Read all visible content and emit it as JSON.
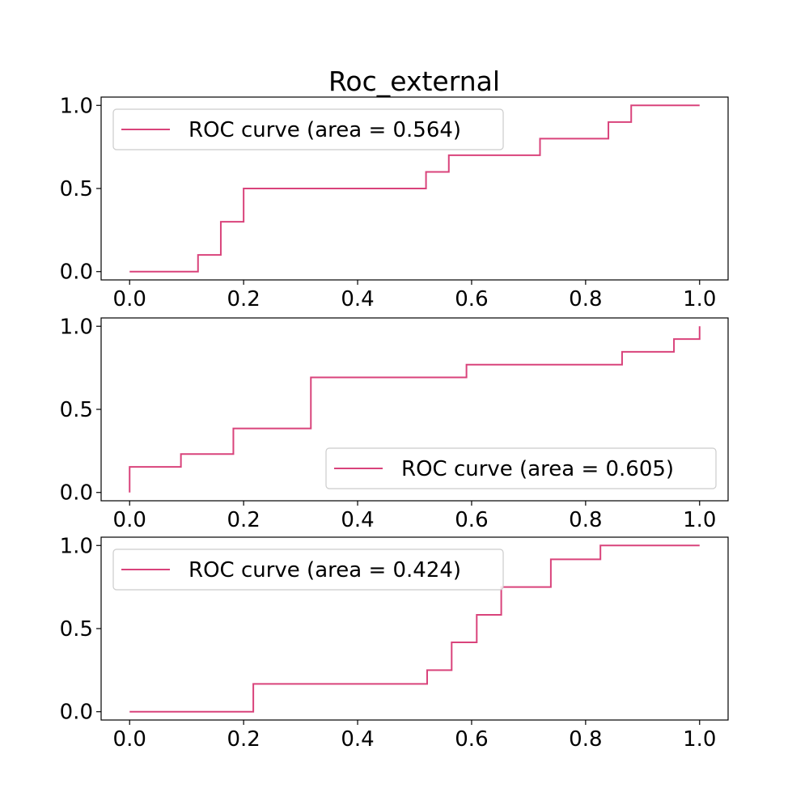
{
  "chart_data": [
    {
      "type": "line",
      "step": true,
      "title": "Roc_external",
      "xlim": [
        -0.05,
        1.05
      ],
      "ylim": [
        -0.05,
        1.05
      ],
      "xticks": [
        "0.0",
        "0.2",
        "0.4",
        "0.6",
        "0.8",
        "1.0"
      ],
      "yticks": [
        "0.0",
        "0.5",
        "1.0"
      ],
      "legend_position": "upper left",
      "series": [
        {
          "name": "ROC curve (area = 0.564)",
          "color": "#d9437b",
          "x": [
            0.0,
            0.12,
            0.12,
            0.16,
            0.16,
            0.2,
            0.2,
            0.52,
            0.52,
            0.56,
            0.56,
            0.72,
            0.72,
            0.84,
            0.84,
            0.88,
            0.88,
            1.0
          ],
          "y": [
            0.0,
            0.0,
            0.1,
            0.1,
            0.3,
            0.3,
            0.5,
            0.5,
            0.6,
            0.6,
            0.7,
            0.7,
            0.8,
            0.8,
            0.9,
            0.9,
            1.0,
            1.0
          ]
        }
      ]
    },
    {
      "type": "line",
      "step": true,
      "title": "",
      "xlim": [
        -0.05,
        1.05
      ],
      "ylim": [
        -0.05,
        1.05
      ],
      "xticks": [
        "0.0",
        "0.2",
        "0.4",
        "0.6",
        "0.8",
        "1.0"
      ],
      "yticks": [
        "0.0",
        "0.5",
        "1.0"
      ],
      "legend_position": "lower right",
      "series": [
        {
          "name": "ROC curve (area = 0.605)",
          "color": "#d9437b",
          "x": [
            0.0,
            0.0,
            0.09,
            0.09,
            0.182,
            0.182,
            0.318,
            0.318,
            0.591,
            0.591,
            0.864,
            0.864,
            0.955,
            0.955,
            1.0,
            1.0
          ],
          "y": [
            0.0,
            0.154,
            0.154,
            0.231,
            0.231,
            0.385,
            0.385,
            0.692,
            0.692,
            0.769,
            0.769,
            0.846,
            0.846,
            0.923,
            0.923,
            1.0
          ]
        }
      ]
    },
    {
      "type": "line",
      "step": true,
      "title": "",
      "xlim": [
        -0.05,
        1.05
      ],
      "ylim": [
        -0.05,
        1.05
      ],
      "xticks": [
        "0.0",
        "0.2",
        "0.4",
        "0.6",
        "0.8",
        "1.0"
      ],
      "yticks": [
        "0.0",
        "0.5",
        "1.0"
      ],
      "legend_position": "upper left",
      "series": [
        {
          "name": "ROC curve (area = 0.424)",
          "color": "#d9437b",
          "x": [
            0.0,
            0.217,
            0.217,
            0.522,
            0.522,
            0.565,
            0.565,
            0.609,
            0.609,
            0.652,
            0.652,
            0.739,
            0.739,
            0.826,
            0.826,
            1.0
          ],
          "y": [
            0.0,
            0.0,
            0.167,
            0.167,
            0.25,
            0.25,
            0.417,
            0.417,
            0.583,
            0.583,
            0.75,
            0.75,
            0.917,
            0.917,
            1.0,
            1.0
          ]
        }
      ]
    }
  ]
}
